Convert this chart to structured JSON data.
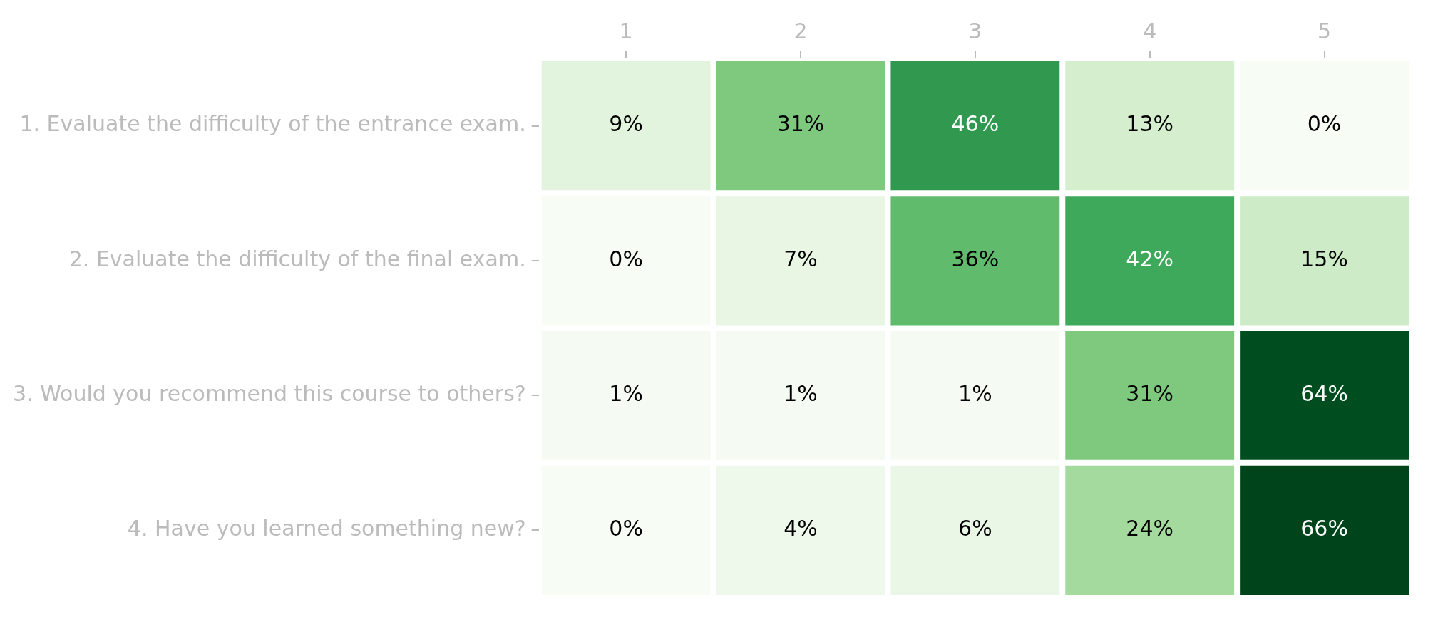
{
  "chart_data": {
    "type": "heatmap",
    "categories": [
      "1",
      "2",
      "3",
      "4",
      "5"
    ],
    "y_categories": [
      "1. Evaluate the difficulty of the entrance exam.",
      "2. Evaluate the difficulty of the final exam.",
      "3. Would you recommend this course to others?",
      "4. Have you learned something new?"
    ],
    "cells": [
      [
        9,
        31,
        46,
        13,
        0
      ],
      [
        0,
        7,
        36,
        42,
        15
      ],
      [
        1,
        1,
        1,
        31,
        64
      ],
      [
        0,
        4,
        6,
        24,
        66
      ]
    ],
    "cell_labels": [
      [
        "9%",
        "31%",
        "46%",
        "13%",
        "0%"
      ],
      [
        "0%",
        "7%",
        "36%",
        "42%",
        "15%"
      ],
      [
        "1%",
        "1%",
        "1%",
        "31%",
        "64%"
      ],
      [
        "0%",
        "4%",
        "6%",
        "24%",
        "66%"
      ]
    ]
  }
}
